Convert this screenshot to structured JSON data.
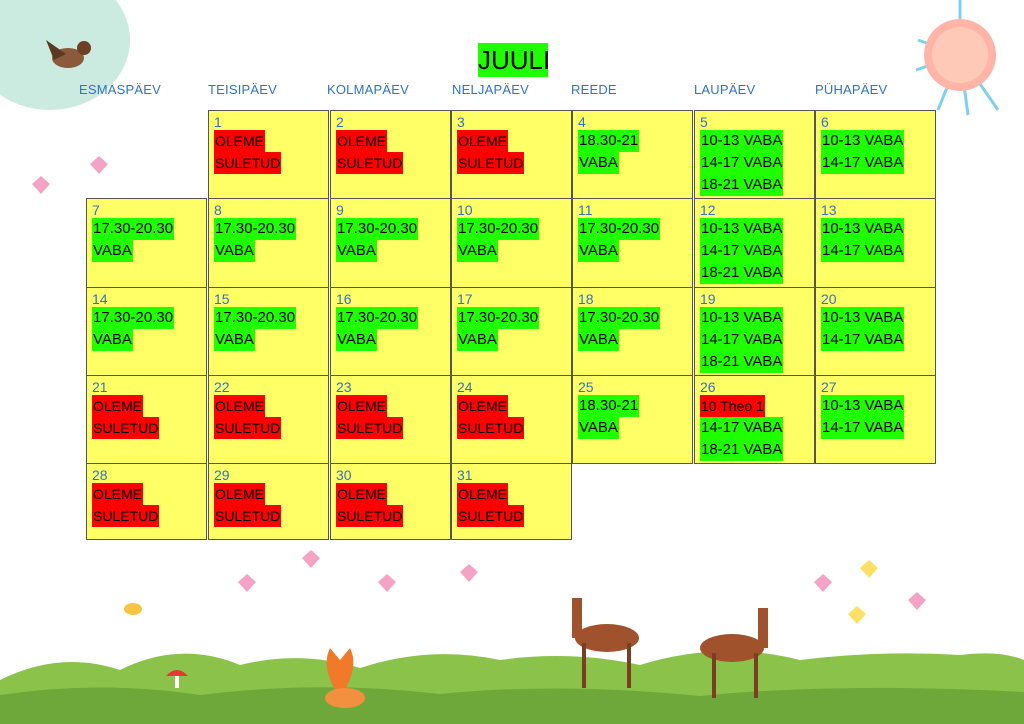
{
  "title": "JUULI",
  "weekdays": [
    "ESMASPÄEV",
    "TEISIPÄEV",
    "KOLMAPÄEV",
    "NELJAPÄEV",
    "REEDE",
    "LAUPÄEV",
    "PÜHAPÄEV"
  ],
  "days": [
    {
      "day": "1",
      "events": [
        {
          "text": "OLEME",
          "color": "red"
        },
        {
          "text": "SULETUD",
          "color": "red"
        }
      ]
    },
    {
      "day": "2",
      "events": [
        {
          "text": "OLEME",
          "color": "red"
        },
        {
          "text": "SULETUD",
          "color": "red"
        }
      ]
    },
    {
      "day": "3",
      "events": [
        {
          "text": "OLEME",
          "color": "red"
        },
        {
          "text": "SULETUD",
          "color": "red"
        }
      ]
    },
    {
      "day": "4",
      "events": [
        {
          "text": "18.30-21",
          "color": "green"
        },
        {
          "text": "VABA",
          "color": "green"
        }
      ]
    },
    {
      "day": "5",
      "events": [
        {
          "text": "10-13 VABA",
          "color": "green"
        },
        {
          "text": "14-17 VABA",
          "color": "green"
        },
        {
          "text": "18-21 VABA",
          "color": "green"
        }
      ]
    },
    {
      "day": "6",
      "events": [
        {
          "text": "10-13 VABA",
          "color": "green"
        },
        {
          "text": "14-17 VABA",
          "color": "green"
        }
      ]
    },
    {
      "day": "7",
      "events": [
        {
          "text": "17.30-20.30",
          "color": "green"
        },
        {
          "text": "VABA",
          "color": "green"
        }
      ]
    },
    {
      "day": "8",
      "events": [
        {
          "text": "17.30-20.30",
          "color": "green"
        },
        {
          "text": "VABA",
          "color": "green"
        }
      ]
    },
    {
      "day": "9",
      "events": [
        {
          "text": "17.30-20.30",
          "color": "green"
        },
        {
          "text": "VABA",
          "color": "green"
        }
      ]
    },
    {
      "day": "10",
      "events": [
        {
          "text": "17.30-20.30",
          "color": "green"
        },
        {
          "text": "VABA",
          "color": "green"
        }
      ]
    },
    {
      "day": "11",
      "events": [
        {
          "text": "17.30-20.30",
          "color": "green"
        },
        {
          "text": "VABA",
          "color": "green"
        }
      ]
    },
    {
      "day": "12",
      "events": [
        {
          "text": "10-13 VABA",
          "color": "green"
        },
        {
          "text": "14-17 VABA",
          "color": "green"
        },
        {
          "text": "18-21 VABA",
          "color": "green"
        }
      ]
    },
    {
      "day": "13",
      "events": [
        {
          "text": "10-13 VABA",
          "color": "green"
        },
        {
          "text": "14-17 VABA",
          "color": "green"
        }
      ]
    },
    {
      "day": "14",
      "events": [
        {
          "text": "17.30-20.30",
          "color": "green"
        },
        {
          "text": "VABA",
          "color": "green"
        }
      ]
    },
    {
      "day": "15",
      "events": [
        {
          "text": "17.30-20.30",
          "color": "green"
        },
        {
          "text": "VABA",
          "color": "green"
        }
      ]
    },
    {
      "day": "16",
      "events": [
        {
          "text": "17.30-20.30",
          "color": "green"
        },
        {
          "text": "VABA",
          "color": "green"
        }
      ]
    },
    {
      "day": "17",
      "events": [
        {
          "text": "17.30-20.30",
          "color": "green"
        },
        {
          "text": "VABA",
          "color": "green"
        }
      ]
    },
    {
      "day": "18",
      "events": [
        {
          "text": "17.30-20.30",
          "color": "green"
        },
        {
          "text": "VABA",
          "color": "green"
        }
      ]
    },
    {
      "day": "19",
      "events": [
        {
          "text": "10-13 VABA",
          "color": "green"
        },
        {
          "text": "14-17 VABA",
          "color": "green"
        },
        {
          "text": "18-21 VABA",
          "color": "green"
        }
      ]
    },
    {
      "day": "20",
      "events": [
        {
          "text": "10-13 VABA",
          "color": "green"
        },
        {
          "text": "14-17 VABA",
          "color": "green"
        }
      ]
    },
    {
      "day": "21",
      "events": [
        {
          "text": "OLEME",
          "color": "red"
        },
        {
          "text": "SULETUD",
          "color": "red"
        }
      ]
    },
    {
      "day": "22",
      "events": [
        {
          "text": "OLEME",
          "color": "red"
        },
        {
          "text": "SULETUD",
          "color": "red"
        }
      ]
    },
    {
      "day": "23",
      "events": [
        {
          "text": "OLEME",
          "color": "red"
        },
        {
          "text": "SULETUD",
          "color": "red"
        }
      ]
    },
    {
      "day": "24",
      "events": [
        {
          "text": "OLEME",
          "color": "red"
        },
        {
          "text": "SULETUD",
          "color": "red"
        }
      ]
    },
    {
      "day": "25",
      "events": [
        {
          "text": "18.30-21",
          "color": "green"
        },
        {
          "text": "VABA",
          "color": "green"
        }
      ]
    },
    {
      "day": "26",
      "events": [
        {
          "text": "10 Theo 1",
          "color": "red"
        },
        {
          "text": "14-17 VABA",
          "color": "green"
        },
        {
          "text": "18-21 VABA",
          "color": "green"
        }
      ]
    },
    {
      "day": "27",
      "events": [
        {
          "text": "10-13 VABA",
          "color": "green"
        },
        {
          "text": "14-17 VABA",
          "color": "green"
        }
      ]
    },
    {
      "day": "28",
      "events": [
        {
          "text": "OLEME",
          "color": "red"
        },
        {
          "text": "SULETUD",
          "color": "red"
        }
      ]
    },
    {
      "day": "29",
      "events": [
        {
          "text": "OLEME",
          "color": "red"
        },
        {
          "text": "SULETUD",
          "color": "red"
        }
      ]
    },
    {
      "day": "30",
      "events": [
        {
          "text": "OLEME",
          "color": "red"
        },
        {
          "text": "SULETUD",
          "color": "red"
        }
      ]
    },
    {
      "day": "31",
      "events": [
        {
          "text": "OLEME",
          "color": "red"
        },
        {
          "text": "SULETUD",
          "color": "red"
        }
      ]
    }
  ],
  "colors": {
    "cell": "#ffff66",
    "free": "#1fff00",
    "closed": "#ff0000",
    "daynumber": "#2f74c0"
  }
}
